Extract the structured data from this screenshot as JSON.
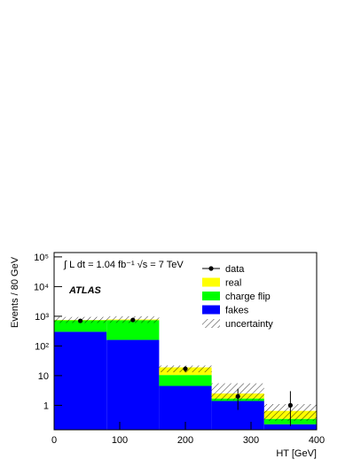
{
  "chart_data": {
    "type": "histogram",
    "bins": [
      0,
      80,
      160,
      240,
      320,
      400
    ],
    "series": [
      {
        "name": "fakes",
        "color": "#0000ff",
        "values": [
          300,
          160,
          4.5,
          1.4,
          0.23
        ]
      },
      {
        "name": "charge flip",
        "color": "#00ff00",
        "values": [
          430,
          580,
          6,
          0.3,
          0.12
        ]
      },
      {
        "name": "real",
        "color": "#ffff00",
        "values": [
          20,
          40,
          8.5,
          0.8,
          0.3
        ]
      }
    ],
    "uncertainty": {
      "name": "uncertainty",
      "low": [
        600,
        600,
        13,
        1.5,
        0.3
      ],
      "high": [
        950,
        1000,
        22,
        5.5,
        1.1
      ]
    },
    "data": {
      "name": "data",
      "x": [
        40,
        120,
        200,
        280,
        360
      ],
      "values": [
        700,
        750,
        17,
        2,
        1
      ],
      "errors_low": [
        26,
        27,
        4,
        1.3,
        0.8
      ],
      "errors_high": [
        26,
        27,
        4,
        1.6,
        2
      ]
    },
    "xlabel": "HT [GeV]",
    "ylabel": "Events / 80 GeV",
    "annotations": [
      "∫ L dt = 1.04 fb⁻¹ √s = 7 TeV",
      "ATLAS"
    ],
    "xlim": [
      0,
      400
    ],
    "xticks": [
      0,
      100,
      200,
      300,
      400
    ],
    "ylim": [
      0.15,
      140000
    ],
    "log_y": true,
    "yticks": [
      1,
      10,
      {
        "value": 100,
        "label": "10²"
      },
      {
        "value": 1000,
        "label": "10³"
      },
      {
        "value": 10000,
        "label": "10⁴"
      },
      {
        "value": 100000,
        "label": "10⁵"
      }
    ],
    "legend": "upper right"
  }
}
